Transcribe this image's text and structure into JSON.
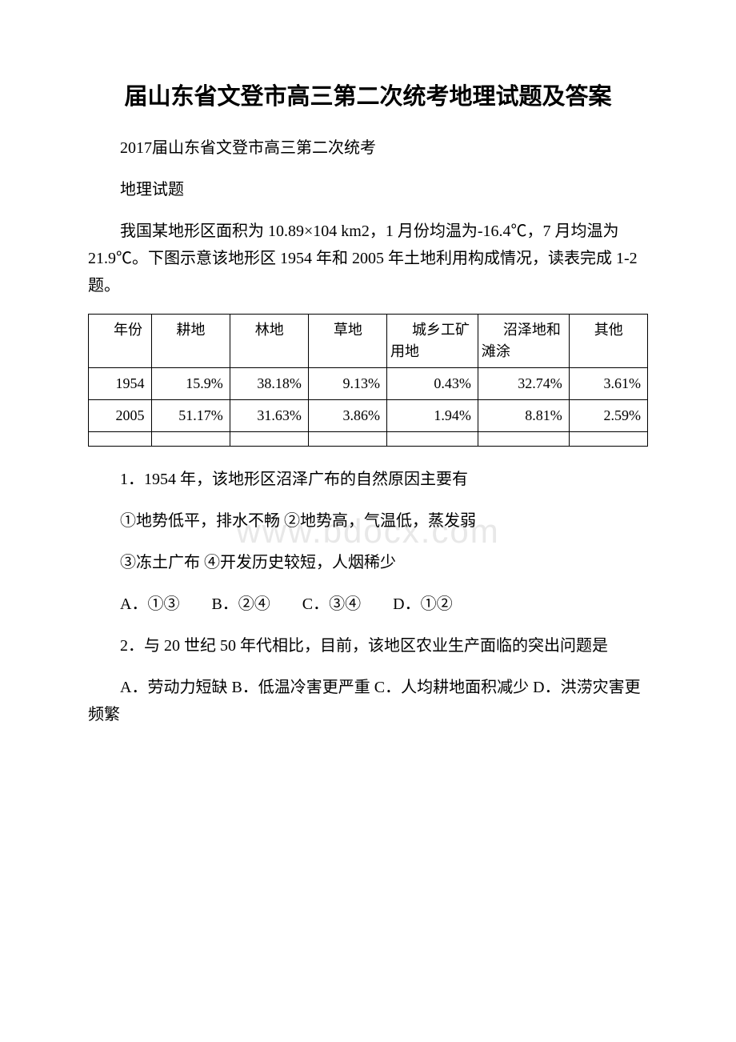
{
  "title": "届山东省文登市高三第二次统考地理试题及答案",
  "subtitle1": "2017届山东省文登市高三第二次统考",
  "subtitle2": "地理试题",
  "intro": "我国某地形区面积为 10.89×104 km2，1 月份均温为-16.4℃，7 月均温为 21.9℃。下图示意该地形区 1954 年和 2005 年土地利用构成情况，读表完成 1-2 题。",
  "table": {
    "headers": [
      "年份",
      "耕地",
      "林地",
      "草地",
      "城乡工矿用地",
      "沼泽地和滩涂",
      "其他"
    ],
    "rows": [
      [
        "1954",
        "15.9%",
        "38.18%",
        "9.13%",
        "0.43%",
        "32.74%",
        "3.61%"
      ],
      [
        "2005",
        "51.17%",
        "31.63%",
        "3.86%",
        "1.94%",
        "8.81%",
        "2.59%"
      ]
    ]
  },
  "q1": {
    "text": "1．1954 年，该地形区沼泽广布的自然原因主要有",
    "conditions1": "①地势低平，排水不畅  ②地势高，气温低，蒸发弱",
    "conditions2": "③冻土广布  ④开发历史较短，人烟稀少",
    "options": "A．①③　　B．②④　　C．③④　　D．①②"
  },
  "q2": {
    "text": "2．与 20 世纪 50 年代相比，目前，该地区农业生产面临的突出问题是",
    "options": "A．劳动力短缺  B．低温冷害更严重  C．人均耕地面积减少  D．洪涝灾害更频繁"
  },
  "watermark": "www.bdocx.com"
}
